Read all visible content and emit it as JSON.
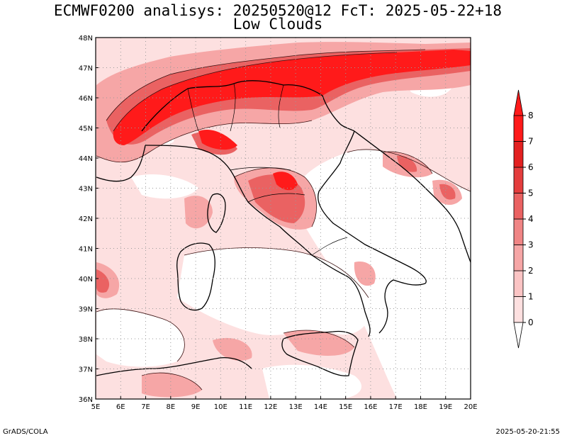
{
  "header": {
    "title_line1": "ECMWF0200 analisys: 20250520@12 FcT: 2025-05-22+18",
    "title_line2": "Low Clouds"
  },
  "axes": {
    "lon_labels": [
      "5E",
      "6E",
      "7E",
      "8E",
      "9E",
      "10E",
      "11E",
      "12E",
      "13E",
      "14E",
      "15E",
      "16E",
      "17E",
      "18E",
      "19E",
      "20E"
    ],
    "lat_labels": [
      "48N",
      "47N",
      "46N",
      "45N",
      "44N",
      "43N",
      "42N",
      "41N",
      "40N",
      "39N",
      "38N",
      "37N",
      "36N"
    ],
    "lon_range": [
      5,
      20
    ],
    "lat_range": [
      36,
      48
    ]
  },
  "colorbar": {
    "levels": [
      "0",
      "1",
      "2",
      "3",
      "4",
      "5",
      "6",
      "7",
      "8"
    ],
    "colors": [
      "#ffffff",
      "#fde0e0",
      "#fbc4c4",
      "#f6a6a6",
      "#f08585",
      "#ea6262",
      "#e43d3d",
      "#e32020",
      "#ff1a1a"
    ]
  },
  "footer": {
    "left": "GrADS/COLA",
    "right": "2025-05-20-21:55"
  },
  "colors": {
    "base_fill": "#fde0e0",
    "high_cloud": "#ff1a1a",
    "coast": "#000000",
    "grid": "#9a9a9a"
  }
}
